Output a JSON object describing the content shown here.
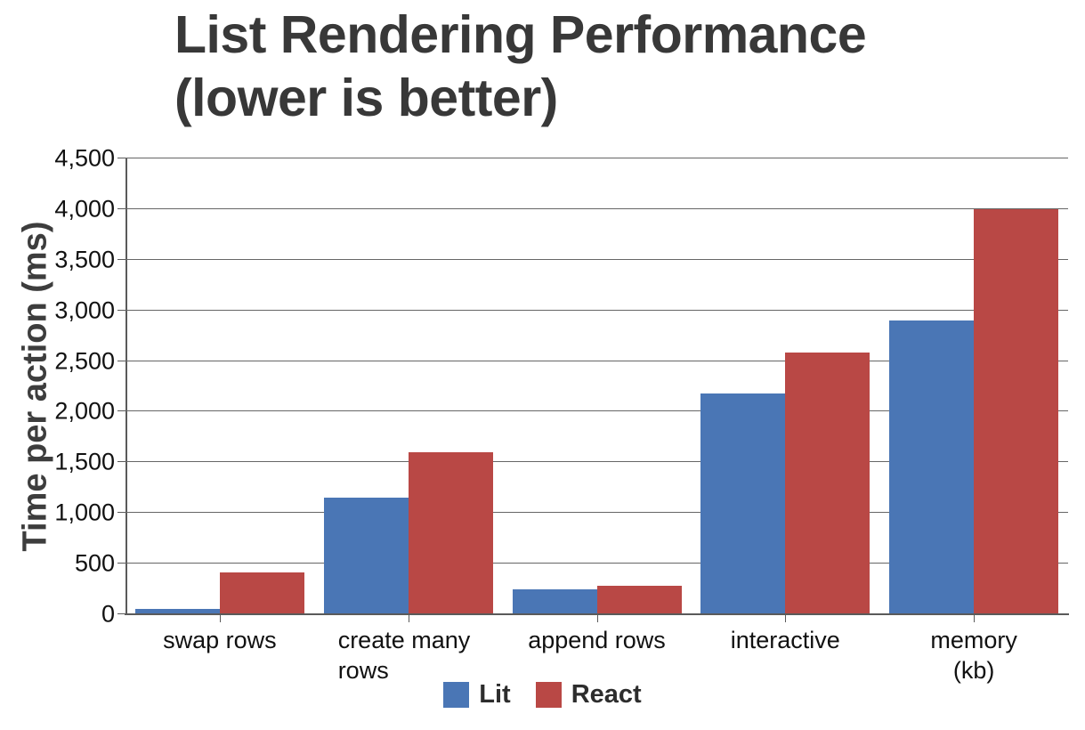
{
  "chart_data": {
    "type": "bar",
    "title": "List Rendering Performance (lower is better)",
    "title_lines": [
      "List Rendering Performance",
      "(lower is better)"
    ],
    "ylabel": "Time per action (ms)",
    "xlabel": "",
    "categories": [
      "swap rows",
      "create many rows",
      "append rows",
      "interactive",
      "memory (kb)"
    ],
    "series": [
      {
        "name": "Lit",
        "color": "#4a76b5",
        "values": [
          50,
          1150,
          250,
          2180,
          2900
        ]
      },
      {
        "name": "React",
        "color": "#b94845",
        "values": [
          415,
          1600,
          280,
          2580,
          4000
        ]
      }
    ],
    "ylim": [
      0,
      4500
    ],
    "ytick_step": 500,
    "ytick_labels": [
      "0",
      "500",
      "1,000",
      "1,500",
      "2,000",
      "2,500",
      "3,000",
      "3,500",
      "4,000",
      "4,500"
    ],
    "grid": true,
    "legend_position": "bottom",
    "colors": {
      "grid": "#666666",
      "axis": "#5a5a5a",
      "tick_text": "#111111",
      "title_text": "#383838",
      "axis_title_text": "#3d3d3d",
      "legend_text": "#2d2d2d",
      "background": "#ffffff"
    }
  }
}
